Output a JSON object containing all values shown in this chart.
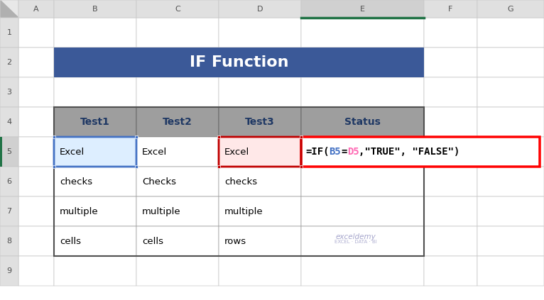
{
  "title": "IF Function",
  "title_bg": "#3B5998",
  "title_color": "#FFFFFF",
  "col_headers": [
    "Test1",
    "Test2",
    "Test3",
    "Status"
  ],
  "col_header_bg": "#9E9E9E",
  "col_header_color": "#1F3864",
  "rows": [
    [
      "Excel",
      "Excel",
      "Excel",
      ""
    ],
    [
      "checks",
      "Checks",
      "checks",
      ""
    ],
    [
      "multiple",
      "multiple",
      "multiple",
      ""
    ],
    [
      "cells",
      "cells",
      "rows",
      ""
    ]
  ],
  "excel_col_letters": [
    "A",
    "B",
    "C",
    "D",
    "E",
    "F",
    "G"
  ],
  "excel_row_numbers": [
    "1",
    "2",
    "3",
    "4",
    "5",
    "6",
    "7",
    "8",
    "9"
  ],
  "bg_color": "#E8E8E8",
  "cell_bg": "#FFFFFF",
  "grid_color": "#C8C8C8",
  "header_strip_bg": "#E0E0E0",
  "active_col_bg": "#D0D0D0",
  "active_row_bg": "#D0D0D0",
  "active_col_bar": "#217346",
  "formula_box_color": "#FF0000",
  "formula_text_black": "#000000",
  "formula_text_blue": "#4472C4",
  "formula_text_pink": "#FF69B4",
  "b5_fill": "#DDEEFF",
  "d5_fill": "#FFE8E8",
  "b5_border": "#4472C4",
  "d5_border": "#C00000",
  "handle_blue": "#4472C4",
  "handle_red": "#C00000",
  "watermark1": "exceldemy",
  "watermark2": "EXCEL · DATA · BI",
  "watermark_color": "#8888BB",
  "formula_parts": [
    "=IF(",
    "B5",
    "=",
    "D5",
    ",\"TRUE\", \"FALSE\")"
  ],
  "formula_colors": [
    "#000000",
    "#4472C4",
    "#000000",
    "#FF69B4",
    "#000000"
  ]
}
